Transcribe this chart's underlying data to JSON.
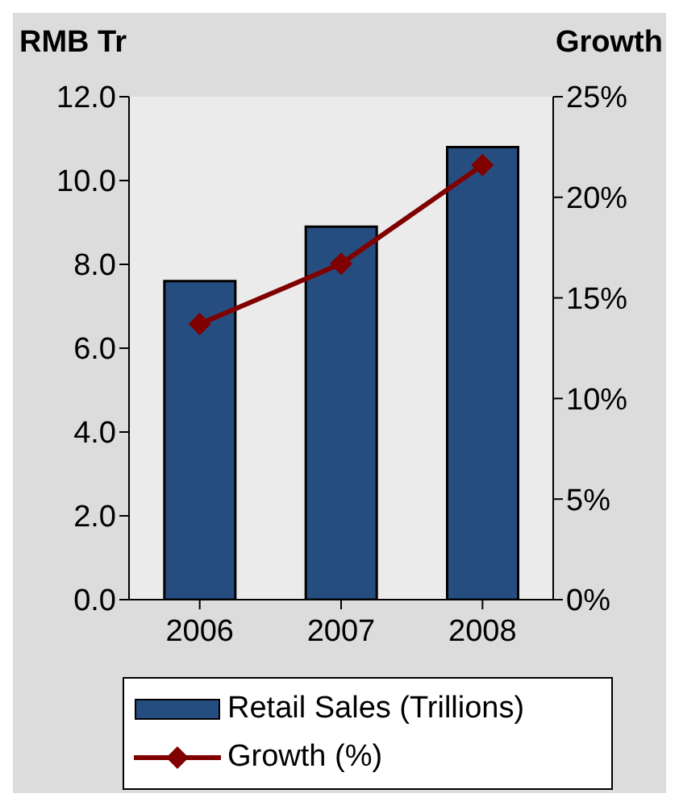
{
  "chart_data": {
    "type": "bar",
    "categories": [
      "2006",
      "2007",
      "2008"
    ],
    "ylabel": "RMB Tr",
    "y2label": "Growth",
    "series": [
      {
        "name": "Retail Sales (Trillions)",
        "color": "#264d80",
        "values": [
          7.6,
          8.9,
          10.8
        ]
      },
      {
        "name": "Growth (%)",
        "type": "line",
        "axis": "y2",
        "color": "#800000",
        "values": [
          13.7,
          16.7,
          21.6
        ]
      }
    ],
    "ylim": [
      0,
      12
    ],
    "yticks": [
      {
        "value": 0,
        "label": "0.0"
      },
      {
        "value": 2,
        "label": "2.0"
      },
      {
        "value": 4,
        "label": "4.0"
      },
      {
        "value": 6,
        "label": "6.0"
      },
      {
        "value": 8,
        "label": "8.0"
      },
      {
        "value": 10,
        "label": "10.0"
      },
      {
        "value": 12,
        "label": "12.0"
      }
    ],
    "y2lim": [
      0,
      25
    ],
    "y2ticks": [
      {
        "value": 0,
        "label": "0%"
      },
      {
        "value": 5,
        "label": "5%"
      },
      {
        "value": 10,
        "label": "10%"
      },
      {
        "value": 15,
        "label": "15%"
      },
      {
        "value": 20,
        "label": "20%"
      },
      {
        "value": 25,
        "label": "25%"
      }
    ],
    "grid": false,
    "legend": "bottom",
    "marker": "diamond",
    "line_style": "solid"
  }
}
